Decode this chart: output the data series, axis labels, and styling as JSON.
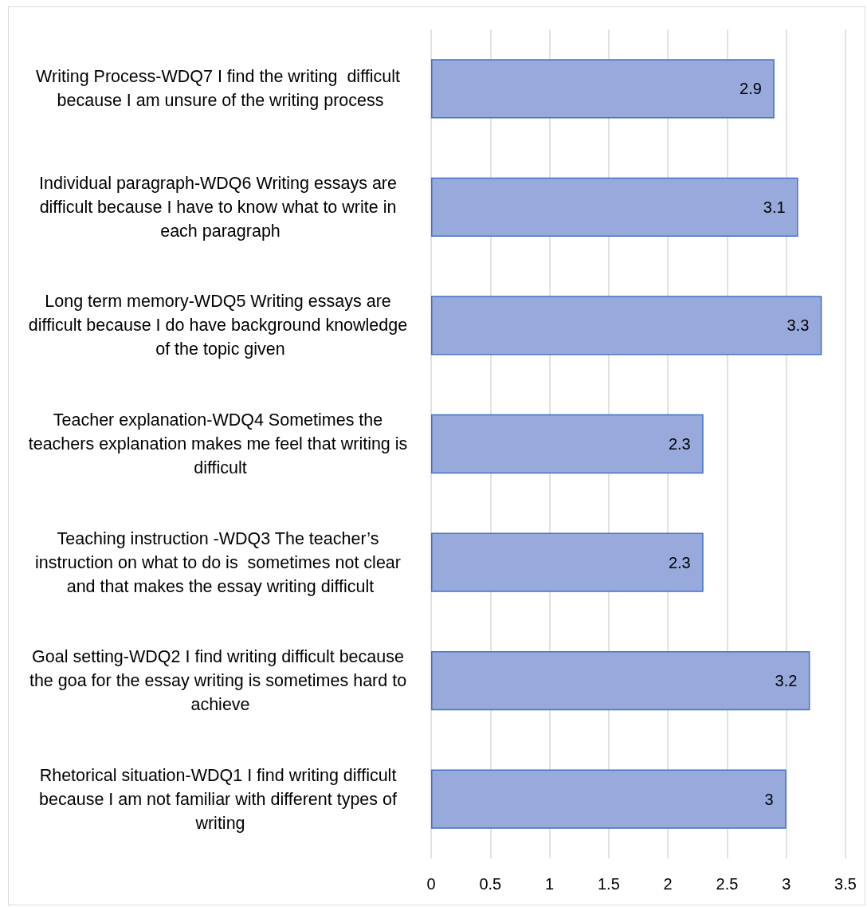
{
  "chart_data": {
    "type": "bar",
    "orientation": "horizontal",
    "categories": [
      "Writing Process-WDQ7 I find the writing  difficult because I am unsure of the writing process",
      "Individual paragraph-WDQ6 Writing essays are difficult because I have to know what to write in each paragraph",
      "Long term memory-WDQ5 Writing essays are difficult because I do have background knowledge of the topic given",
      "Teacher explanation-WDQ4 Sometimes the teachers explanation makes me feel that writing is difficult",
      "Teaching instruction -WDQ3 The teacher’s instruction on what to do is  sometimes not clear and that makes the essay writing difficult",
      "Goal setting-WDQ2 I find writing difficult because the goa for the essay writing is sometimes hard to achieve",
      "Rhetorical situation-WDQ1 I find writing difficult because I am not familiar with different types of writing"
    ],
    "values": [
      2.9,
      3.1,
      3.3,
      2.3,
      2.3,
      3.2,
      3
    ],
    "color": "#97aadb",
    "xlim": [
      0,
      3.5
    ],
    "xticks": [
      0,
      0.5,
      1,
      1.5,
      2,
      2.5,
      3,
      3.5
    ],
    "grid": "x",
    "data_labels": true
  }
}
